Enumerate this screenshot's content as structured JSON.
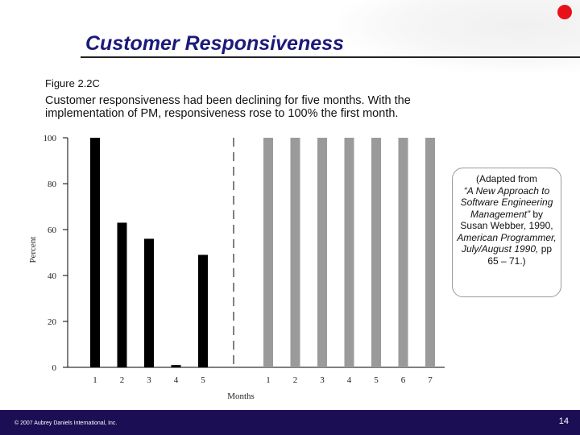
{
  "slide": {
    "title": "Customer Responsiveness",
    "figure_label": "Figure 2.2C",
    "subtitle": "Customer responsiveness had been declining for five months. With the implementation of PM, responsiveness rose to 100% the first month.",
    "callout": {
      "line1": "(Adapted from",
      "source_title": "“A New Approach to Software Engineering Management”",
      "after_title": " by Susan Webber, 1990, ",
      "journal": "American Programmer, July/August 1990,",
      "pages": " pp 65 – 71.)"
    },
    "copyright": "© 2007 Aubrey Daniels International, Inc.",
    "page_number": "14"
  },
  "colors": {
    "accent": "#1c1a7a",
    "footer": "#1c0e54",
    "dot": "#e8111a"
  },
  "chart_data": {
    "type": "bar",
    "title": "",
    "xlabel": "Months",
    "ylabel": "Percent",
    "ylim": [
      0,
      100
    ],
    "yticks": [
      0,
      20,
      40,
      60,
      80,
      100
    ],
    "grid": false,
    "divider": "dashed vertical line between the two groups",
    "series": [
      {
        "categories": [
          "1",
          "2",
          "3",
          "4",
          "5"
        ],
        "values": [
          100,
          63,
          56,
          1,
          49
        ],
        "color": "#000000"
      },
      {
        "categories": [
          "1",
          "2",
          "3",
          "4",
          "5",
          "6",
          "7"
        ],
        "values": [
          100,
          100,
          100,
          100,
          100,
          100,
          100
        ],
        "color": "#9a9a9a"
      }
    ]
  }
}
